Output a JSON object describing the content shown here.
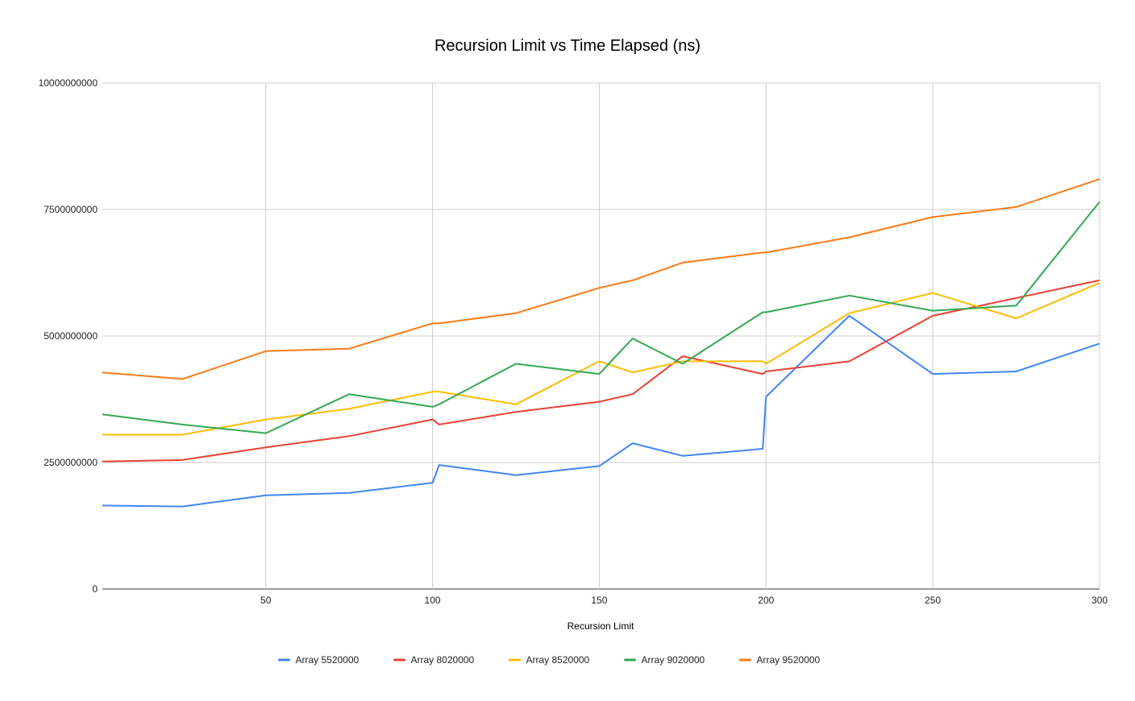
{
  "chart_data": {
    "type": "line",
    "title": "Recursion Limit vs Time Elapsed (ns)",
    "xlabel": "Recursion Limit",
    "ylabel": "",
    "xlim": [
      1,
      300
    ],
    "ylim": [
      0,
      10000000000
    ],
    "x_ticks": [
      50,
      100,
      150,
      200,
      250,
      300
    ],
    "y_ticks": [
      0,
      2500000000,
      5000000000,
      7500000000,
      10000000000
    ],
    "y_tick_labels": [
      "0",
      "2500000000",
      "5000000000",
      "7500000000",
      "10000000000"
    ],
    "grid": true,
    "legend_position": "bottom",
    "x": [
      1,
      25,
      50,
      75,
      100,
      102,
      125,
      150,
      160,
      175,
      199,
      200,
      225,
      250,
      275,
      300
    ],
    "series": [
      {
        "name": "Array 5520000",
        "color": "#4285f4",
        "values": [
          1650000000,
          1630000000,
          1850000000,
          1900000000,
          2100000000,
          2450000000,
          2250000000,
          2430000000,
          2880000000,
          2630000000,
          2770000000,
          3800000000,
          5400000000,
          4250000000,
          4300000000,
          4850000000
        ]
      },
      {
        "name": "Array 8020000",
        "color": "#ea4335",
        "values": [
          2520000000,
          2550000000,
          2800000000,
          3020000000,
          3350000000,
          3250000000,
          3500000000,
          3700000000,
          3850000000,
          4600000000,
          4250000000,
          4300000000,
          4500000000,
          5400000000,
          5750000000,
          6100000000
        ]
      },
      {
        "name": "Array 8520000",
        "color": "#fbbc04",
        "values": [
          3050000000,
          3050000000,
          3350000000,
          3560000000,
          3900000000,
          3900000000,
          3650000000,
          4500000000,
          4280000000,
          4500000000,
          4500000000,
          4450000000,
          5450000000,
          5850000000,
          5350000000,
          6050000000
        ]
      },
      {
        "name": "Array 9020000",
        "color": "#34a853",
        "values": [
          3450000000,
          3250000000,
          3080000000,
          3850000000,
          3600000000,
          3650000000,
          4450000000,
          4250000000,
          4950000000,
          4450000000,
          5470000000,
          5470000000,
          5800000000,
          5500000000,
          5600000000,
          7650000000
        ]
      },
      {
        "name": "Array 9520000",
        "color": "#fa7b17",
        "values": [
          4280000000,
          4150000000,
          4700000000,
          4750000000,
          5250000000,
          5250000000,
          5450000000,
          5950000000,
          6100000000,
          6450000000,
          6650000000,
          6650000000,
          6950000000,
          7350000000,
          7550000000,
          8100000000
        ]
      }
    ]
  }
}
